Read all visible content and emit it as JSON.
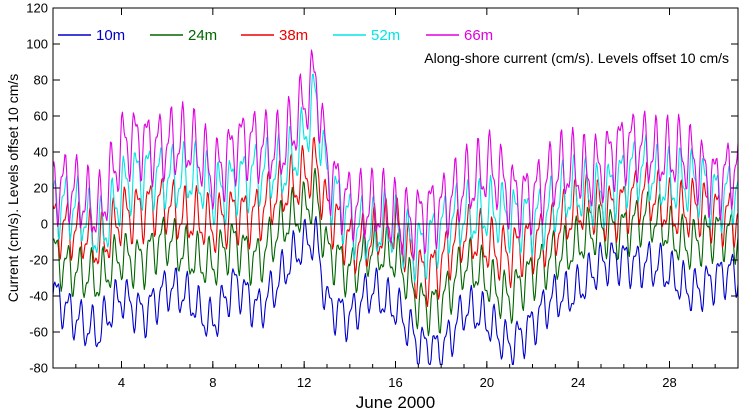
{
  "chart_data": {
    "type": "line",
    "xlabel": "June 2000",
    "ylabel": "Current (cm/s). Levels offset 10 cm/s",
    "annotation": "Along-shore current (cm/s). Levels offset 10 cm/s",
    "xlim": [
      1,
      31
    ],
    "ylim": [
      -80,
      120
    ],
    "xticks": [
      4,
      8,
      12,
      16,
      20,
      24,
      28
    ],
    "yticks": [
      -80,
      -60,
      -40,
      -20,
      0,
      20,
      40,
      60,
      80,
      100,
      120
    ],
    "grid": false,
    "legend_position": "top-left",
    "reference_line_y": 0,
    "series": [
      {
        "name": "10m",
        "color": "#0000cc",
        "x": [
          1,
          2,
          3,
          4,
          5,
          6,
          7,
          8,
          9,
          10,
          11,
          12,
          12.5,
          13,
          14,
          15,
          16,
          17,
          18,
          19,
          20,
          21,
          22,
          23,
          24,
          25,
          26,
          27,
          28,
          29,
          30,
          31
        ],
        "y": [
          -40,
          -50,
          -62,
          -40,
          -48,
          -38,
          -40,
          -55,
          -35,
          -45,
          -30,
          -12,
          -5,
          -42,
          -55,
          -35,
          -45,
          -70,
          -68,
          -48,
          -55,
          -65,
          -58,
          -40,
          -35,
          -25,
          -18,
          -22,
          -30,
          -35,
          -32,
          -28
        ]
      },
      {
        "name": "24m",
        "color": "#006600",
        "x": [
          1,
          2,
          3,
          4,
          5,
          6,
          7,
          8,
          9,
          10,
          11,
          12,
          12.5,
          13,
          14,
          15,
          16,
          17,
          18,
          19,
          20,
          21,
          22,
          23,
          24,
          25,
          26,
          27,
          28,
          29,
          30,
          31
        ],
        "y": [
          -15,
          -25,
          -35,
          -15,
          -20,
          -10,
          -15,
          -25,
          -10,
          -18,
          -5,
          10,
          20,
          -15,
          -30,
          -10,
          -20,
          -45,
          -42,
          -25,
          -30,
          -40,
          -30,
          -15,
          -12,
          -5,
          0,
          2,
          -5,
          -10,
          -8,
          -5
        ]
      },
      {
        "name": "38m",
        "color": "#ee0000",
        "x": [
          1,
          2,
          3,
          4,
          5,
          6,
          7,
          8,
          9,
          10,
          11,
          12,
          12.5,
          13,
          14,
          15,
          16,
          17,
          18,
          19,
          20,
          21,
          22,
          23,
          24,
          25,
          26,
          27,
          28,
          29,
          30,
          31
        ],
        "y": [
          5,
          -5,
          -15,
          8,
          5,
          12,
          5,
          -5,
          10,
          5,
          15,
          30,
          35,
          5,
          -10,
          -5,
          -5,
          -25,
          -22,
          -8,
          -8,
          -20,
          -10,
          0,
          5,
          10,
          12,
          15,
          10,
          8,
          5,
          8
        ]
      },
      {
        "name": "52m",
        "color": "#00e5e5",
        "x": [
          1,
          2,
          3,
          4,
          5,
          6,
          7,
          8,
          9,
          10,
          11,
          12,
          12.5,
          13,
          14,
          15,
          16,
          17,
          18,
          19,
          20,
          21,
          22,
          23,
          24,
          25,
          26,
          27,
          28,
          29,
          30,
          31
        ],
        "y": [
          15,
          5,
          -5,
          20,
          25,
          30,
          25,
          15,
          28,
          25,
          30,
          50,
          70,
          20,
          5,
          -5,
          -5,
          -10,
          -5,
          5,
          10,
          0,
          5,
          12,
          15,
          20,
          25,
          30,
          25,
          20,
          18,
          22
        ]
      },
      {
        "name": "66m",
        "color": "#e000e0",
        "x": [
          1,
          2,
          3,
          4,
          5,
          6,
          7,
          8,
          9,
          10,
          11,
          12,
          12.5,
          13,
          14,
          15,
          16,
          17,
          18,
          19,
          20,
          21,
          22,
          23,
          24,
          25,
          26,
          27,
          28,
          29,
          30,
          31
        ],
        "y": [
          20,
          15,
          10,
          40,
          45,
          48,
          40,
          30,
          45,
          40,
          45,
          65,
          78,
          30,
          15,
          5,
          5,
          5,
          5,
          25,
          30,
          15,
          20,
          25,
          30,
          35,
          40,
          45,
          38,
          32,
          28,
          30
        ]
      }
    ]
  }
}
